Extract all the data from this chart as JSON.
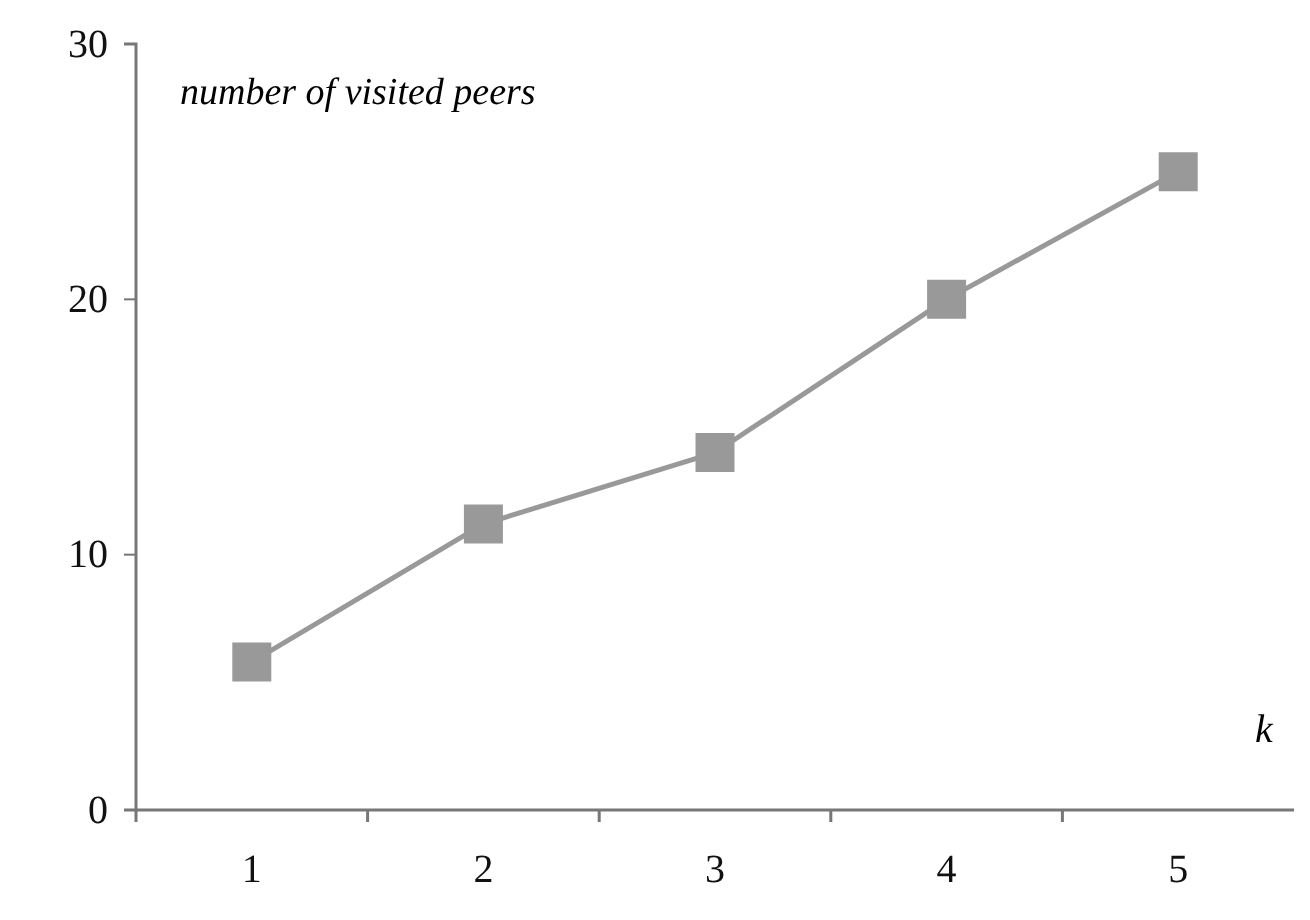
{
  "chart_data": {
    "type": "line",
    "ylabel": "number of visited peers",
    "xlabel": "k",
    "categories": [
      "1",
      "2",
      "3",
      "4",
      "5"
    ],
    "series": [
      {
        "color": "#999999",
        "values": [
          5.8,
          11.2,
          14,
          20,
          25
        ]
      }
    ],
    "ylim": [
      0,
      30
    ],
    "yticks": [
      0,
      10,
      20,
      30
    ],
    "marker": "square",
    "line_style": "solid",
    "grid": false
  }
}
